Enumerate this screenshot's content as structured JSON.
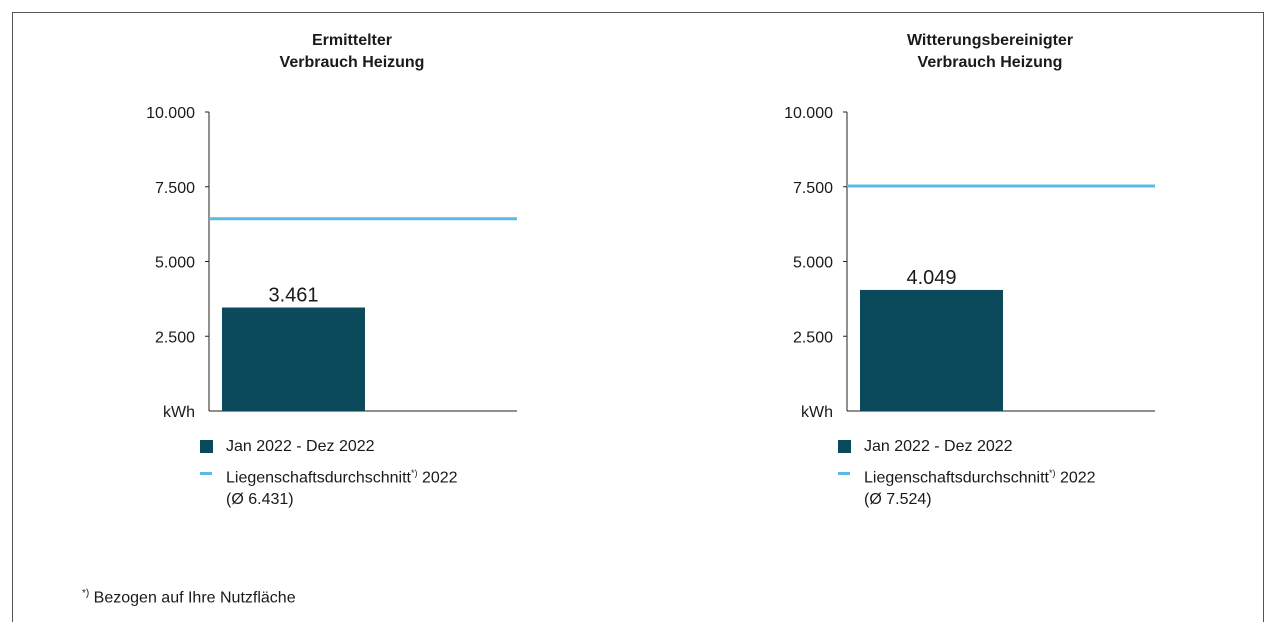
{
  "chart_data": [
    {
      "type": "bar",
      "title_line1": "Ermittelter",
      "title_line2": "Verbrauch Heizung",
      "ylabel": "kWh",
      "ylim": [
        0,
        10000
      ],
      "yticks": [
        "10.000",
        "7.500",
        "5.000",
        "2.500"
      ],
      "categories": [
        "Jan 2022 - Dez 2022"
      ],
      "series": [
        {
          "name": "Jan 2022 - Dez 2022",
          "values": [
            3461
          ],
          "color": "#0b4a5a"
        }
      ],
      "value_label": "3.461",
      "reference_line": {
        "value": 6431,
        "color": "#5bbbe3"
      },
      "legend": {
        "bar_label": "Jan 2022 - Dez 2022",
        "line_label": "Liegenschaftsdurchschnitt",
        "line_sup": "*)",
        "line_year": " 2022",
        "line_avg": "(Ø 6.431)"
      }
    },
    {
      "type": "bar",
      "title_line1": "Witterungsbereinigter",
      "title_line2": "Verbrauch Heizung",
      "ylabel": "kWh",
      "ylim": [
        0,
        10000
      ],
      "yticks": [
        "10.000",
        "7.500",
        "5.000",
        "2.500"
      ],
      "categories": [
        "Jan 2022 - Dez 2022"
      ],
      "series": [
        {
          "name": "Jan 2022 - Dez 2022",
          "values": [
            4049
          ],
          "color": "#0b4a5a"
        }
      ],
      "value_label": "4.049",
      "reference_line": {
        "value": 7524,
        "color": "#5bbbe3"
      },
      "legend": {
        "bar_label": "Jan 2022 - Dez 2022",
        "line_label": "Liegenschaftsdurchschnitt",
        "line_sup": "*)",
        "line_year": " 2022",
        "line_avg": "(Ø 7.524)"
      }
    }
  ],
  "footnote": {
    "sup": "*)",
    "text": " Bezogen auf Ihre Nutzfläche"
  }
}
